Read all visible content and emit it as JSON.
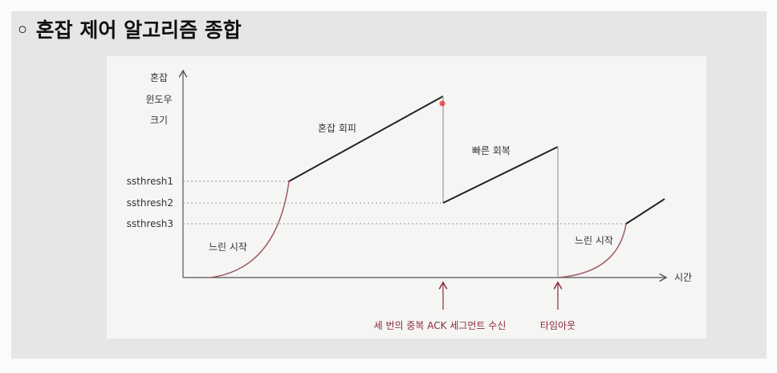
{
  "header": {
    "title": "◦ 혼잡 제어 알고리즘 종합"
  },
  "diagram": {
    "y_axis_label": [
      "혼잡",
      "윈도우",
      "크기"
    ],
    "x_axis_label": "시간",
    "thresholds": [
      "ssthresh1",
      "ssthresh2",
      "ssthresh3"
    ],
    "phases": [
      "혼잡 회피",
      "빠른 회복",
      "느린 시작",
      "느린 시작"
    ],
    "events": [
      "세 번의 중복 ACK 세그먼트 수신",
      "타임아웃"
    ]
  }
}
